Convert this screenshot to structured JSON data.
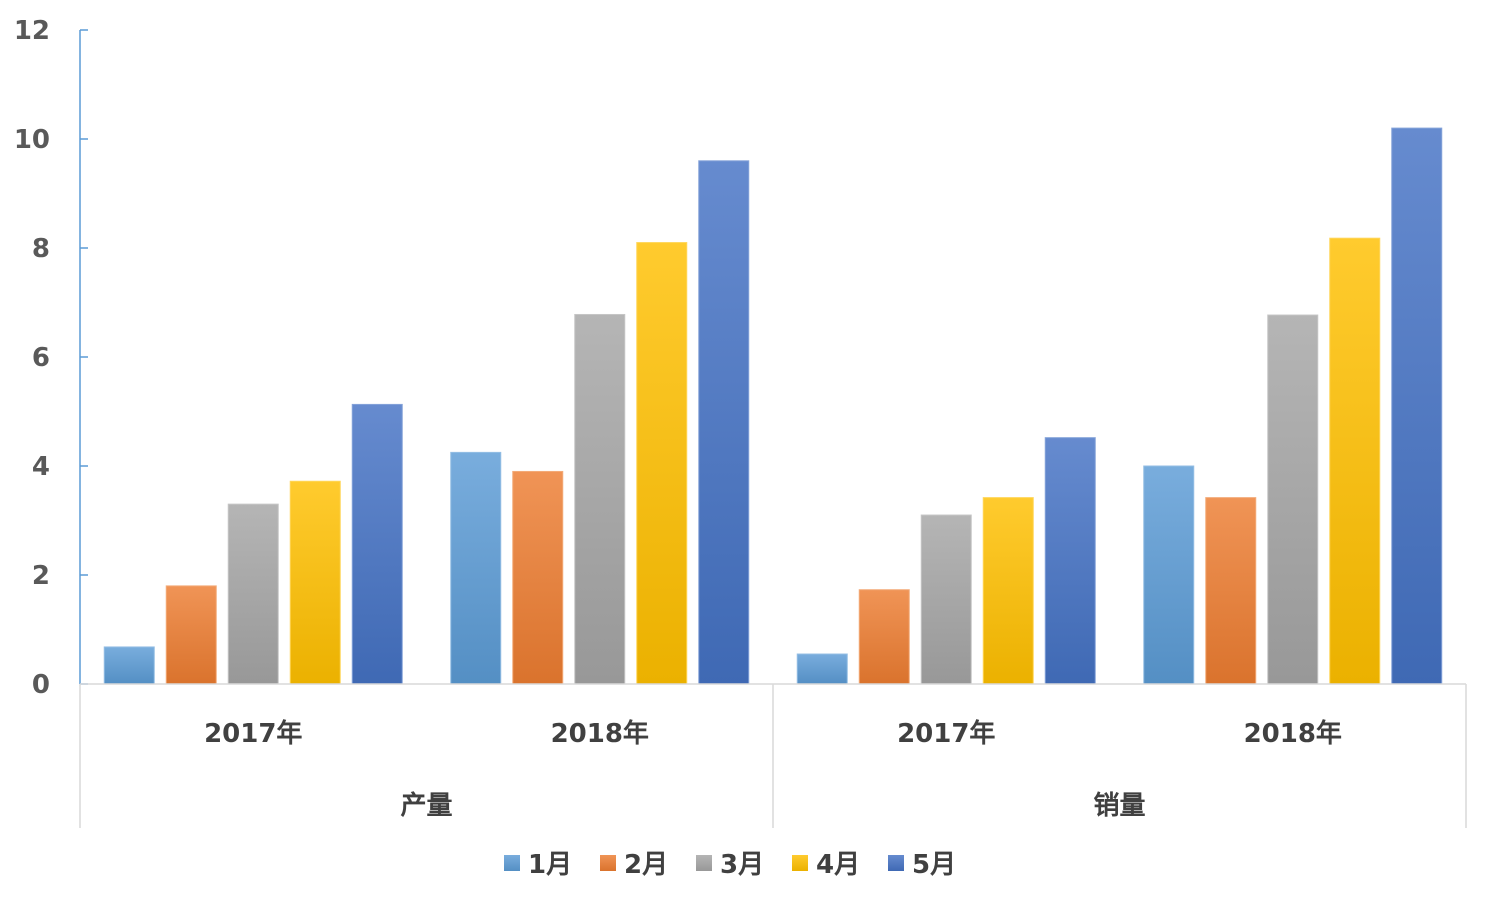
{
  "chart_data": {
    "type": "bar",
    "title": "",
    "xlabel": "",
    "ylabel": "",
    "ylim": [
      0,
      12
    ],
    "yticks": [
      "0",
      "2",
      "4",
      "6",
      "8",
      "10",
      "12"
    ],
    "groups": [
      {
        "label": "产量",
        "categories": [
          "2017年",
          "2018年"
        ]
      },
      {
        "label": "销量",
        "categories": [
          "2017年",
          "2018年"
        ]
      }
    ],
    "categories": [
      "产量 2017年",
      "产量 2018年",
      "销量 2017年",
      "销量 2018年"
    ],
    "series": [
      {
        "name": "1月",
        "color": "#5B9BD5",
        "values": [
          0.68,
          4.25,
          0.55,
          4.0
        ]
      },
      {
        "name": "2月",
        "color": "#ED7D31",
        "values": [
          1.8,
          3.9,
          1.73,
          3.42
        ]
      },
      {
        "name": "3月",
        "color": "#A5A5A5",
        "values": [
          3.3,
          6.78,
          3.1,
          6.77
        ]
      },
      {
        "name": "4月",
        "color": "#FFC000",
        "values": [
          3.72,
          8.1,
          3.42,
          8.18
        ]
      },
      {
        "name": "5月",
        "color": "#4472C4",
        "values": [
          5.13,
          9.6,
          4.52,
          10.2
        ]
      }
    ],
    "grid": false,
    "legend_position": "bottom"
  }
}
